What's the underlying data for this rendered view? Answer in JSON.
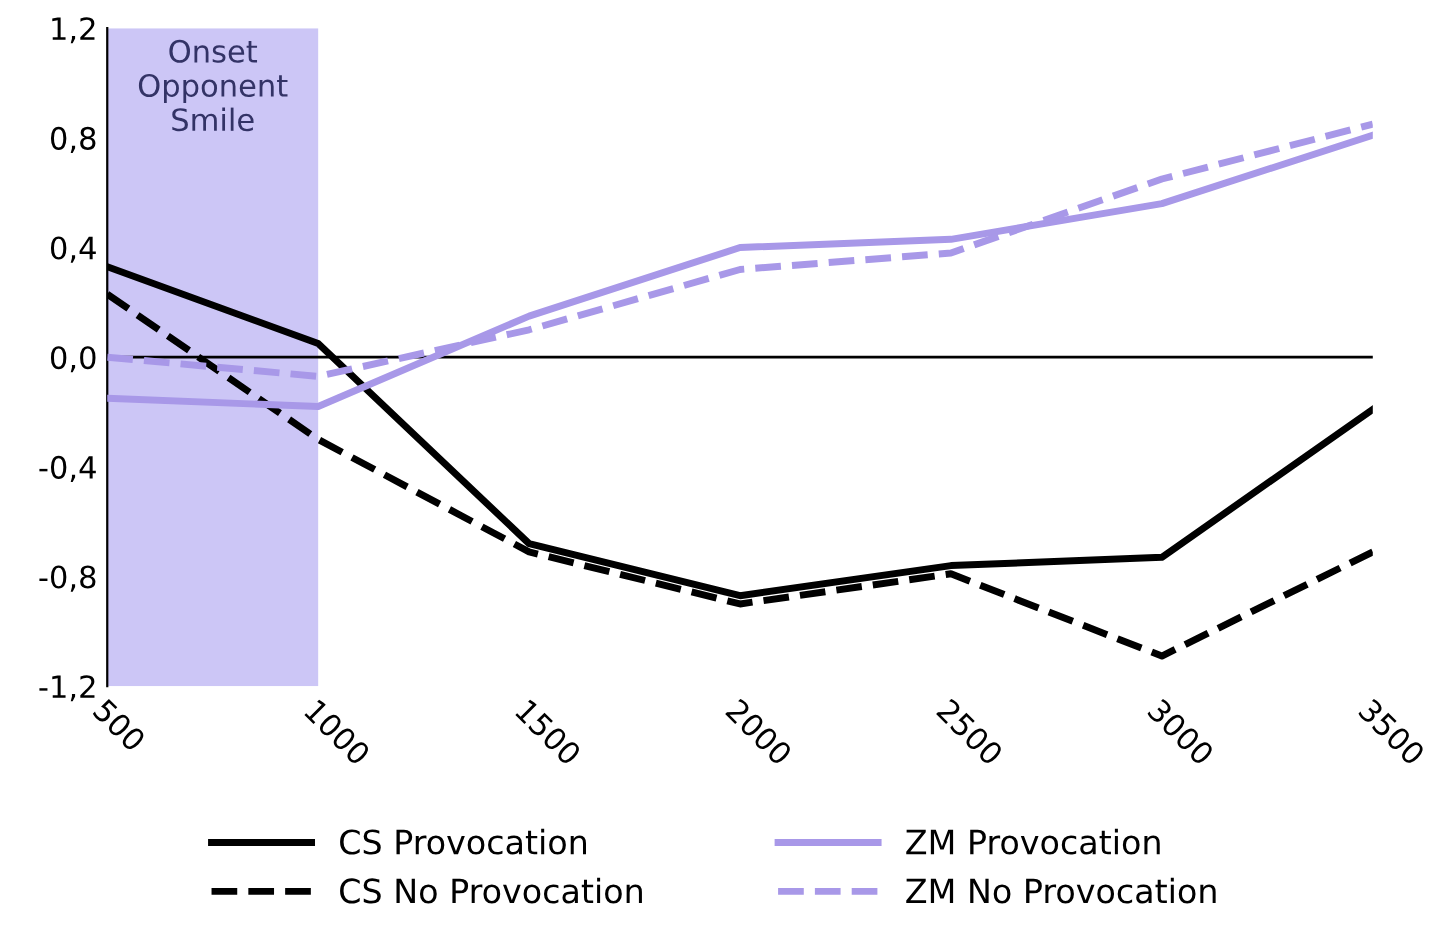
{
  "chart_data": {
    "type": "line",
    "x": [
      500,
      1000,
      1500,
      2000,
      2500,
      3000,
      3500
    ],
    "series": [
      {
        "name": "CS Provocation",
        "color": "#000000",
        "line_style": "solid",
        "values": [
          0.33,
          0.05,
          -0.68,
          -0.87,
          -0.76,
          -0.73,
          -0.19
        ]
      },
      {
        "name": "CS No Provocation",
        "color": "#000000",
        "line_style": "dashed",
        "values": [
          0.23,
          -0.3,
          -0.71,
          -0.9,
          -0.79,
          -1.09,
          -0.71
        ]
      },
      {
        "name": "ZM Provocation",
        "color": "#a898e8",
        "line_style": "solid",
        "values": [
          -0.15,
          -0.18,
          0.15,
          0.4,
          0.43,
          0.56,
          0.81
        ]
      },
      {
        "name": "ZM No Provocation",
        "color": "#a898e8",
        "line_style": "dashed",
        "values": [
          0.0,
          -0.07,
          0.1,
          0.32,
          0.38,
          0.65,
          0.85
        ]
      }
    ],
    "xlim": [
      500,
      3500
    ],
    "xticks": [
      500,
      1000,
      1500,
      2000,
      2500,
      3000,
      3500
    ],
    "ylim": [
      -1.2,
      1.2
    ],
    "yticks": [
      {
        "value": -1.2,
        "label": "-1,2"
      },
      {
        "value": -0.8,
        "label": "-0,8"
      },
      {
        "value": -0.4,
        "label": "-0,4"
      },
      {
        "value": 0,
        "label": "0,0"
      },
      {
        "value": 0.4,
        "label": "0,4"
      },
      {
        "value": 0.8,
        "label": "0,8"
      },
      {
        "value": 1.2,
        "label": "1,2"
      }
    ],
    "ref_lines": [
      {
        "axis": "y",
        "value": 0,
        "color": "#000000"
      }
    ],
    "bands": [
      {
        "axis": "x",
        "from": 500,
        "to": 1000,
        "label": "Onset\nOpponent\nSmile",
        "color": "#ccc6f6"
      }
    ],
    "legend": "bottom",
    "grid": false,
    "marker": "none"
  }
}
